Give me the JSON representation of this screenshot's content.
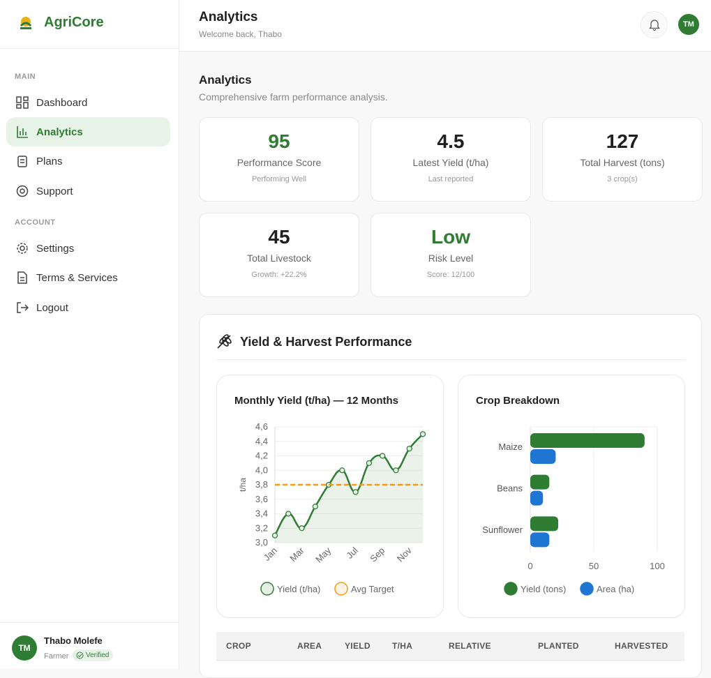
{
  "brand": "AgriCore",
  "nav": {
    "sections": [
      {
        "label": "MAIN",
        "items": [
          "Dashboard",
          "Analytics",
          "Plans",
          "Support"
        ]
      },
      {
        "label": "ACCOUNT",
        "items": [
          "Settings",
          "Terms & Services",
          "Logout"
        ]
      }
    ]
  },
  "user": {
    "initials": "TM",
    "name": "Thabo Molefe",
    "role": "Farmer",
    "badge": "Verified"
  },
  "header": {
    "title": "Analytics",
    "subtitle": "Welcome back, Thabo",
    "initials": "TM"
  },
  "page": {
    "title": "Analytics",
    "subtitle": "Comprehensive farm performance analysis."
  },
  "stats": [
    {
      "value": 95,
      "label": "Performance Score",
      "note": "Performing Well",
      "color": "#2e7d32"
    },
    {
      "value": 4.5,
      "label": "Latest Yield (t/ha)",
      "note": "Last reported",
      "color": "#1f1f1f"
    },
    {
      "value": 127,
      "label": "Total Harvest (tons)",
      "note": "3 crop(s)",
      "color": "#1f1f1f"
    },
    {
      "value": 45,
      "label": "Total Livestock",
      "note": "Growth: +22.2%",
      "color": "#1f1f1f"
    },
    {
      "value": "Low",
      "label": "Risk Level",
      "note": "Score: 12/100",
      "color": "#2e7d32"
    }
  ],
  "section": {
    "title": "Yield & Harvest Performance"
  },
  "chart_data": [
    {
      "type": "line",
      "title": "Monthly Yield (t/ha) — 12 Months",
      "y_label": "t/ha",
      "categories": [
        "Jan",
        null,
        "Mar",
        null,
        "May",
        null,
        "Jul",
        null,
        "Sep",
        null,
        "Nov",
        null
      ],
      "series": [
        {
          "name": "Yield (t/ha)",
          "color": "#2e7d32",
          "fill": true,
          "values": [
            3.1,
            3.4,
            3.2,
            3.5,
            3.8,
            4.0,
            3.7,
            4.1,
            4.2,
            4.0,
            4.3,
            4.5
          ]
        },
        {
          "name": "Avg Target",
          "color": "#f39c12",
          "style": "dashed",
          "values": [
            3.8,
            3.8,
            3.8,
            3.8,
            3.8,
            3.8,
            3.8,
            3.8,
            3.8,
            3.8,
            3.8,
            3.8
          ]
        }
      ],
      "ylim": [
        3.0,
        4.6
      ],
      "yticks": [
        {
          "value": 3.0,
          "label": "3,0"
        },
        {
          "value": 3.2,
          "label": "3,2"
        },
        {
          "value": 3.4,
          "label": "3,4"
        },
        {
          "value": 3.6,
          "label": "3,6"
        },
        {
          "value": 3.8,
          "label": "3,8"
        },
        {
          "value": 4.0,
          "label": "4,0"
        },
        {
          "value": 4.2,
          "label": "4,2"
        },
        {
          "value": 4.4,
          "label": "4,4"
        },
        {
          "value": 4.6,
          "label": "4,6"
        }
      ],
      "grid": true
    },
    {
      "type": "hbar",
      "title": "Crop Breakdown",
      "categories": [
        "Maize",
        "Beans",
        "Sunflower"
      ],
      "series": [
        {
          "name": "Yield (tons)",
          "color": "#2e7d32",
          "values": [
            90,
            15,
            22
          ]
        },
        {
          "name": "Area (ha)",
          "color": "#1e76d2",
          "values": [
            20,
            10,
            15
          ]
        }
      ],
      "xlim": [
        0,
        100
      ],
      "xticks": [
        0,
        50,
        100
      ],
      "grid": true
    }
  ],
  "table": {
    "headers": [
      "CROP",
      "AREA",
      "YIELD",
      "T/HA",
      "RELATIVE",
      "PLANTED",
      "HARVESTED"
    ]
  }
}
